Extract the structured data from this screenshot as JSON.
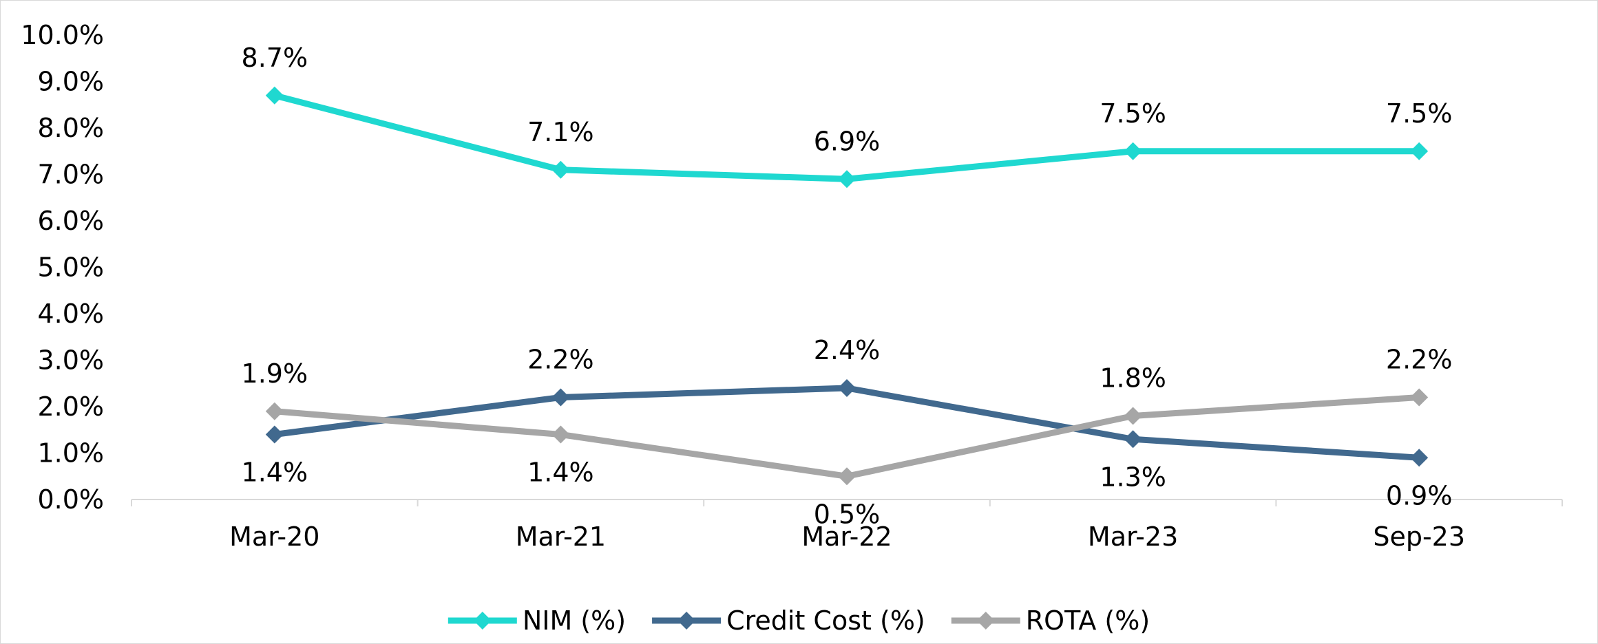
{
  "chart_data": {
    "type": "line",
    "categories": [
      "Mar-20",
      "Mar-21",
      "Mar-22",
      "Mar-23",
      "Sep-23"
    ],
    "ylim": [
      0,
      10
    ],
    "y_ticks": [
      "0.0%",
      "1.0%",
      "2.0%",
      "3.0%",
      "4.0%",
      "5.0%",
      "6.0%",
      "7.0%",
      "8.0%",
      "9.0%",
      "10.0%"
    ],
    "grid": false,
    "legend_position": "bottom",
    "series": [
      {
        "name": "NIM (%)",
        "color": "#1fd8d0",
        "marker": "diamond",
        "values": [
          8.7,
          7.1,
          6.9,
          7.5,
          7.5
        ],
        "labels": [
          "8.7%",
          "7.1%",
          "6.9%",
          "7.5%",
          "7.5%"
        ],
        "label_pos": [
          "above",
          "above",
          "above",
          "above",
          "above"
        ]
      },
      {
        "name": "Credit Cost (%)",
        "color": "#41698e",
        "marker": "diamond",
        "values": [
          1.4,
          2.2,
          2.4,
          1.3,
          0.9
        ],
        "labels": [
          "1.4%",
          "2.2%",
          "2.4%",
          "1.3%",
          "0.9%"
        ],
        "label_pos": [
          "below",
          "above",
          "above",
          "below",
          "below"
        ]
      },
      {
        "name": "ROTA (%)",
        "color": "#a6a6a6",
        "marker": "diamond",
        "values": [
          1.9,
          1.4,
          0.5,
          1.8,
          2.2
        ],
        "labels": [
          "1.9%",
          "1.4%",
          "0.5%",
          "1.8%",
          "2.2%"
        ],
        "label_pos": [
          "above",
          "below",
          "below",
          "above",
          "above"
        ]
      }
    ]
  }
}
